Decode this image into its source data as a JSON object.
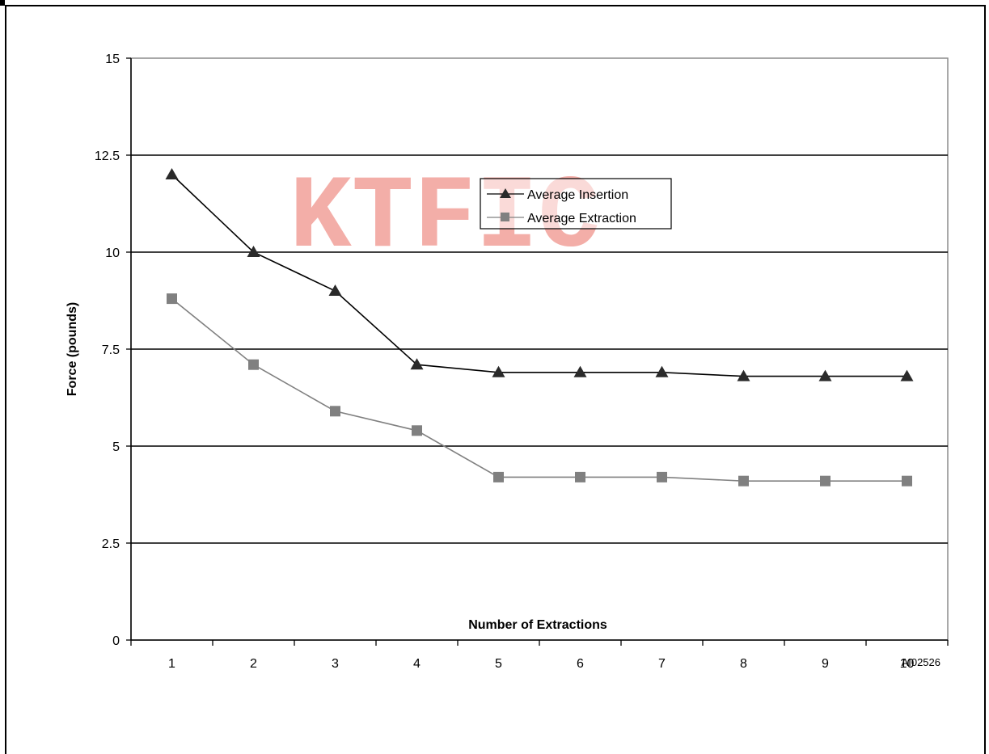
{
  "chart_data": {
    "type": "line",
    "xlabel": "Number of Extractions",
    "ylabel": "Force (pounds)",
    "categories": [
      "1",
      "2",
      "3",
      "4",
      "5",
      "6",
      "7",
      "8",
      "9",
      "10"
    ],
    "ylim": [
      0,
      15
    ],
    "yticks": [
      "0",
      "2.5",
      "5",
      "7.5",
      "10",
      "12.5",
      "15"
    ],
    "grid": "horizontal major gridlines",
    "legend_position": "top-center",
    "series": [
      {
        "name": "Average Insertion",
        "marker": "triangle",
        "color": "#000000",
        "values": [
          12,
          10,
          9,
          7.1,
          6.9,
          6.9,
          6.9,
          6.8,
          6.8,
          6.8
        ]
      },
      {
        "name": "Average Extraction",
        "marker": "square",
        "color": "#808080",
        "values": [
          8.8,
          7.1,
          5.9,
          5.4,
          4.2,
          4.2,
          4.2,
          4.1,
          4.1,
          4.1
        ]
      }
    ]
  },
  "watermark": "KTFIC",
  "figure_code": "AI02526",
  "colors": {
    "insertion_marker": "#2a2a2a",
    "extraction_marker": "#808080",
    "watermark": "#f2a09a"
  }
}
